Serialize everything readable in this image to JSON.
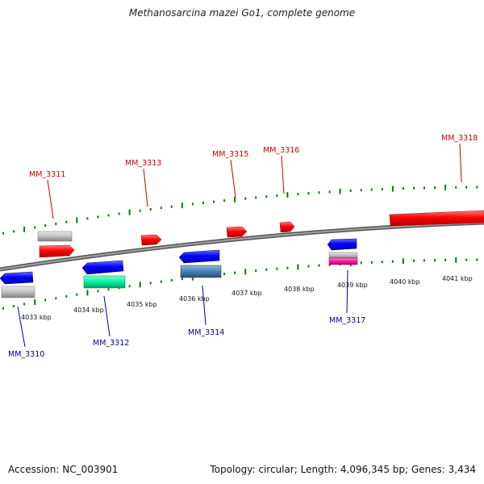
{
  "title": "Methanosarcina mazei Go1, complete genome",
  "footer": {
    "accession": "Accession: NC_003901",
    "topology": "Topology: circular; Length: 4,096,345 bp; Genes: 3,434"
  },
  "scale_labels": [
    "4033 kbp",
    "4034 kbp",
    "4035 kbp",
    "4036 kbp",
    "4037 kbp",
    "4038 kbp",
    "4039 kbp",
    "4040 kbp",
    "4041 kbp"
  ],
  "gene_labels_top": [
    "MM_3311",
    "MM_3313",
    "MM_3315",
    "MM_3316",
    "MM_3318"
  ],
  "gene_labels_bottom": [
    "MM_3310",
    "MM_3312",
    "MM_3314",
    "MM_3317"
  ],
  "colors": {
    "forward_strand": "#ff0000",
    "reverse_strand": "#0000ff",
    "label_forward": "#cc0000",
    "label_reverse": "#000099",
    "tick": "#008000",
    "backbone": "#808080",
    "pseudo_gray": "#c0c0c0",
    "green_gene": "#00e0a0",
    "steel_gene": "#4682b4",
    "magenta_gene": "#ff1aa0"
  }
}
